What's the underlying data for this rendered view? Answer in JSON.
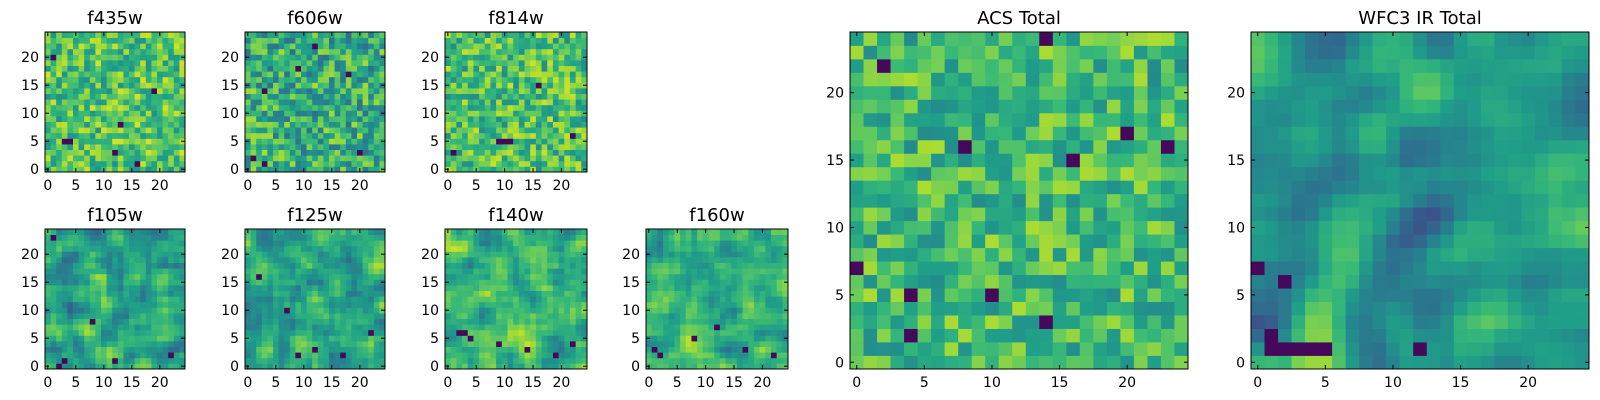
{
  "chart_data": [
    {
      "id": "f435w",
      "type": "heatmap",
      "title": "f435w",
      "grid_size": 25,
      "colormap": "viridis",
      "xlim": [
        -0.5,
        24.5
      ],
      "ylim": [
        -0.5,
        24.5
      ],
      "x_ticks": [
        0,
        5,
        10,
        15,
        20
      ],
      "y_ticks": [
        0,
        5,
        10,
        15,
        20
      ],
      "x_tick_labels": [
        "0",
        "5",
        "10",
        "15",
        "20"
      ],
      "y_tick_labels": [
        "0",
        "5",
        "10",
        "15",
        "20"
      ],
      "seed": 101,
      "smooth": 0,
      "mean": 0.72,
      "spread": 0.22,
      "dark_cells": [
        [
          3,
          5
        ],
        [
          4,
          5
        ],
        [
          12,
          3
        ],
        [
          16,
          1
        ],
        [
          1,
          20
        ],
        [
          19,
          14
        ],
        [
          13,
          8
        ]
      ]
    },
    {
      "id": "f606w",
      "type": "heatmap",
      "title": "f606w",
      "grid_size": 25,
      "colormap": "viridis",
      "xlim": [
        -0.5,
        24.5
      ],
      "ylim": [
        -0.5,
        24.5
      ],
      "x_ticks": [
        0,
        5,
        10,
        15,
        20
      ],
      "y_ticks": [
        0,
        5,
        10,
        15,
        20
      ],
      "x_tick_labels": [
        "0",
        "5",
        "10",
        "15",
        "20"
      ],
      "y_tick_labels": [
        "0",
        "5",
        "10",
        "15",
        "20"
      ],
      "seed": 202,
      "smooth": 0,
      "mean": 0.62,
      "spread": 0.25,
      "dark_cells": [
        [
          3,
          14
        ],
        [
          9,
          18
        ],
        [
          1,
          2
        ],
        [
          3,
          1
        ],
        [
          12,
          22
        ],
        [
          18,
          17
        ],
        [
          20,
          3
        ]
      ]
    },
    {
      "id": "f814w",
      "type": "heatmap",
      "title": "f814w",
      "grid_size": 25,
      "colormap": "viridis",
      "xlim": [
        -0.5,
        24.5
      ],
      "ylim": [
        -0.5,
        24.5
      ],
      "x_ticks": [
        0,
        5,
        10,
        15,
        20
      ],
      "y_ticks": [
        0,
        5,
        10,
        15,
        20
      ],
      "x_tick_labels": [
        "0",
        "5",
        "10",
        "15",
        "20"
      ],
      "y_tick_labels": [
        "0",
        "5",
        "10",
        "15",
        "20"
      ],
      "seed": 303,
      "smooth": 0,
      "mean": 0.7,
      "spread": 0.22,
      "dark_cells": [
        [
          9,
          5
        ],
        [
          10,
          5
        ],
        [
          11,
          5
        ],
        [
          16,
          15
        ],
        [
          1,
          3
        ],
        [
          22,
          6
        ]
      ]
    },
    {
      "id": "f105w",
      "type": "heatmap",
      "title": "f105w",
      "grid_size": 25,
      "colormap": "viridis",
      "xlim": [
        -0.5,
        24.5
      ],
      "ylim": [
        -0.5,
        24.5
      ],
      "x_ticks": [
        0,
        5,
        10,
        15,
        20
      ],
      "y_ticks": [
        0,
        5,
        10,
        15,
        20
      ],
      "x_tick_labels": [
        "0",
        "5",
        "10",
        "15",
        "20"
      ],
      "y_tick_labels": [
        "0",
        "5",
        "10",
        "15",
        "20"
      ],
      "seed": 404,
      "smooth": 1,
      "mean": 0.58,
      "spread": 0.28,
      "dark_cells": [
        [
          1,
          23
        ],
        [
          2,
          0
        ],
        [
          3,
          1
        ],
        [
          12,
          1
        ],
        [
          22,
          2
        ],
        [
          8,
          8
        ]
      ]
    },
    {
      "id": "f125w",
      "type": "heatmap",
      "title": "f125w",
      "grid_size": 25,
      "colormap": "viridis",
      "xlim": [
        -0.5,
        24.5
      ],
      "ylim": [
        -0.5,
        24.5
      ],
      "x_ticks": [
        0,
        5,
        10,
        15,
        20
      ],
      "y_ticks": [
        0,
        5,
        10,
        15,
        20
      ],
      "x_tick_labels": [
        "0",
        "5",
        "10",
        "15",
        "20"
      ],
      "y_tick_labels": [
        "0",
        "5",
        "10",
        "15",
        "20"
      ],
      "seed": 505,
      "smooth": 1,
      "mean": 0.62,
      "spread": 0.26,
      "dark_cells": [
        [
          7,
          10
        ],
        [
          9,
          2
        ],
        [
          12,
          3
        ],
        [
          17,
          2
        ],
        [
          22,
          6
        ],
        [
          2,
          16
        ]
      ]
    },
    {
      "id": "f140w",
      "type": "heatmap",
      "title": "f140w",
      "grid_size": 25,
      "colormap": "viridis",
      "xlim": [
        -0.5,
        24.5
      ],
      "ylim": [
        -0.5,
        24.5
      ],
      "x_ticks": [
        0,
        5,
        10,
        15,
        20
      ],
      "y_ticks": [
        0,
        5,
        10,
        15,
        20
      ],
      "x_tick_labels": [
        "0",
        "5",
        "10",
        "15",
        "20"
      ],
      "y_tick_labels": [
        "0",
        "5",
        "10",
        "15",
        "20"
      ],
      "seed": 606,
      "smooth": 1,
      "mean": 0.66,
      "spread": 0.26,
      "dark_cells": [
        [
          2,
          6
        ],
        [
          3,
          6
        ],
        [
          4,
          5
        ],
        [
          9,
          4
        ],
        [
          14,
          3
        ],
        [
          19,
          2
        ],
        [
          22,
          4
        ]
      ]
    },
    {
      "id": "f160w",
      "type": "heatmap",
      "title": "f160w",
      "grid_size": 25,
      "colormap": "viridis",
      "xlim": [
        -0.5,
        24.5
      ],
      "ylim": [
        -0.5,
        24.5
      ],
      "x_ticks": [
        0,
        5,
        10,
        15,
        20
      ],
      "y_ticks": [
        0,
        5,
        10,
        15,
        20
      ],
      "x_tick_labels": [
        "0",
        "5",
        "10",
        "15",
        "20"
      ],
      "y_tick_labels": [
        "0",
        "5",
        "10",
        "15",
        "20"
      ],
      "seed": 707,
      "smooth": 1,
      "mean": 0.64,
      "spread": 0.26,
      "dark_cells": [
        [
          1,
          3
        ],
        [
          2,
          2
        ],
        [
          8,
          5
        ],
        [
          12,
          7
        ],
        [
          17,
          3
        ],
        [
          22,
          2
        ]
      ]
    },
    {
      "id": "acs-total",
      "type": "heatmap",
      "title": "ACS Total",
      "grid_size": 25,
      "colormap": "viridis",
      "xlim": [
        -0.5,
        24.5
      ],
      "ylim": [
        -0.5,
        24.5
      ],
      "x_ticks": [
        0,
        5,
        10,
        15,
        20
      ],
      "y_ticks": [
        0,
        5,
        10,
        15,
        20
      ],
      "x_tick_labels": [
        "0",
        "5",
        "10",
        "15",
        "20"
      ],
      "y_tick_labels": [
        "0",
        "5",
        "10",
        "15",
        "20"
      ],
      "seed": 808,
      "smooth": 0,
      "mean": 0.68,
      "spread": 0.2,
      "dark_cells": [
        [
          14,
          24
        ],
        [
          2,
          22
        ],
        [
          16,
          15
        ],
        [
          20,
          17
        ],
        [
          23,
          16
        ],
        [
          10,
          5
        ],
        [
          14,
          3
        ],
        [
          4,
          2
        ],
        [
          4,
          5
        ],
        [
          8,
          16
        ],
        [
          0,
          7
        ]
      ]
    },
    {
      "id": "wfc3-ir-total",
      "type": "heatmap",
      "title": "WFC3 IR Total",
      "grid_size": 25,
      "colormap": "viridis",
      "xlim": [
        -0.5,
        24.5
      ],
      "ylim": [
        -0.5,
        24.5
      ],
      "x_ticks": [
        0,
        5,
        10,
        15,
        20
      ],
      "y_ticks": [
        0,
        5,
        10,
        15,
        20
      ],
      "x_tick_labels": [
        "0",
        "5",
        "10",
        "15",
        "20"
      ],
      "y_tick_labels": [
        "0",
        "5",
        "10",
        "15",
        "20"
      ],
      "seed": 909,
      "smooth": 2,
      "mean": 0.55,
      "spread": 0.3,
      "dark_cells": [
        [
          1,
          1
        ],
        [
          2,
          1
        ],
        [
          3,
          1
        ],
        [
          4,
          1
        ],
        [
          5,
          1
        ],
        [
          1,
          2
        ],
        [
          2,
          6
        ],
        [
          12,
          1
        ],
        [
          0,
          7
        ]
      ]
    }
  ]
}
